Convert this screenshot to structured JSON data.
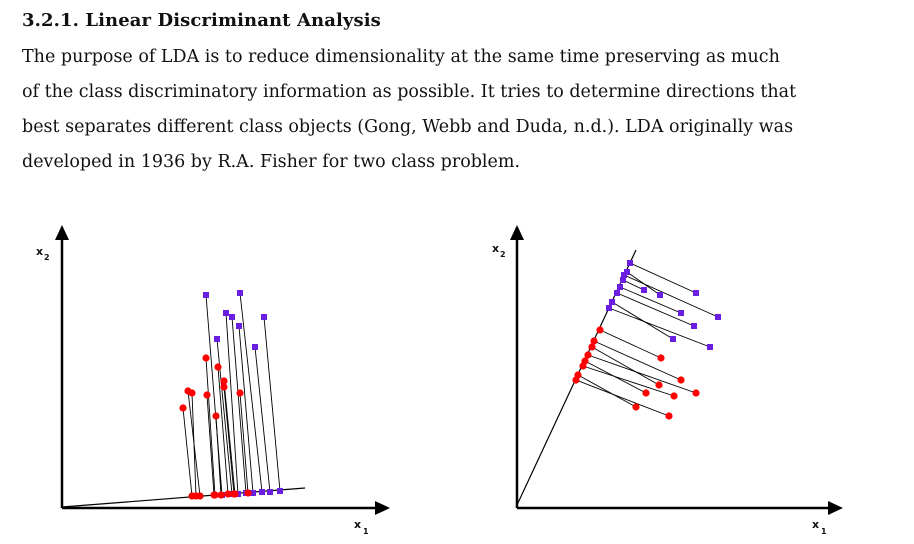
{
  "section": {
    "heading": "3.2.1. Linear Discriminant Analysis",
    "paragraph_lines": [
      "The purpose of LDA is to reduce dimensionality at the same time preserving as much",
      "of the class discriminatory information as possible. It tries to determine directions that",
      "best separates different class objects (Gong, Webb and Duda, n.d.). LDA originally was",
      "developed in 1936 by R.A. Fisher for two class problem."
    ]
  },
  "figure": {
    "left_plot": {
      "x_label": "x",
      "x_sub": "1",
      "y_label": "x",
      "y_sub": "2"
    },
    "right_plot": {
      "x_label": "x",
      "x_sub": "1",
      "y_label": "x",
      "y_sub": "2"
    },
    "colors": {
      "class_red": "#ff0000",
      "class_blue": "#6a1fe0",
      "ink": "#000000"
    }
  }
}
